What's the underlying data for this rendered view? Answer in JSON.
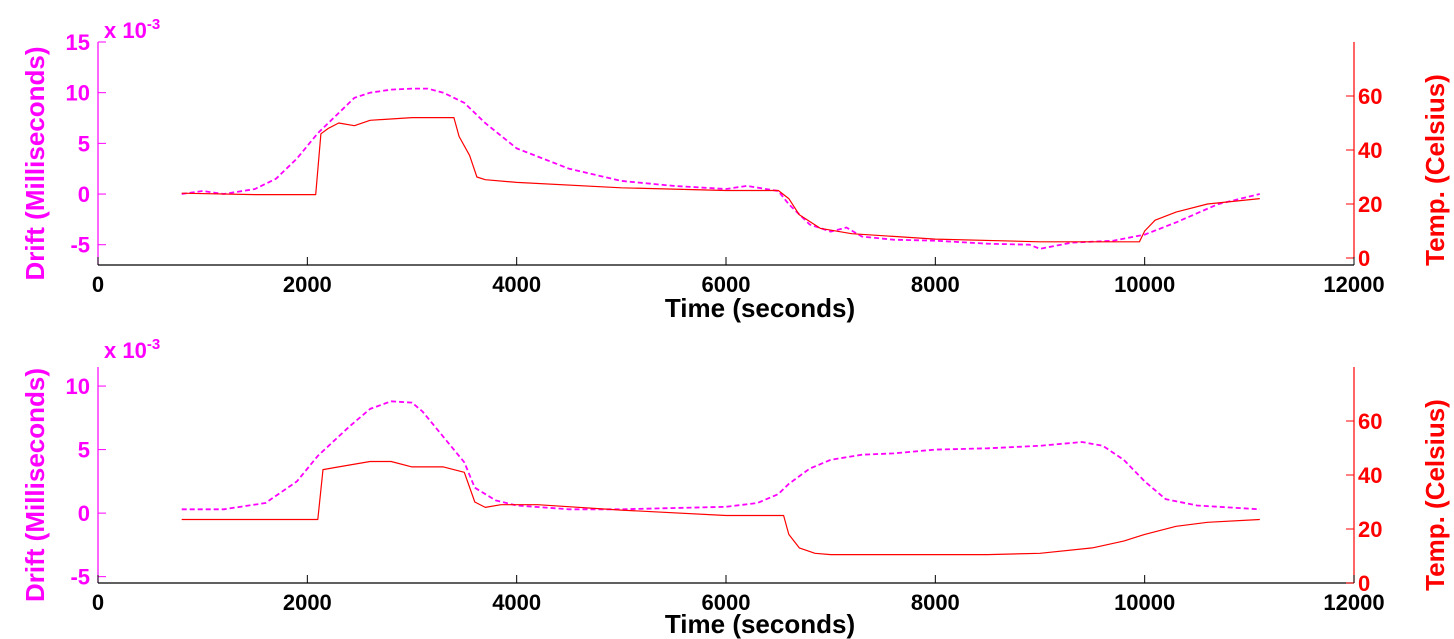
{
  "chart_data": [
    {
      "type": "line",
      "xlabel": "Time (seconds)",
      "ylabel": "Drift (Milliseconds)",
      "ylabel_right": "Temp. (Celsius)",
      "y_scale_prefix": "x 10",
      "y_scale_exponent": "-3",
      "xlim": [
        0,
        12000
      ],
      "xticks": [
        0,
        2000,
        4000,
        6000,
        8000,
        10000,
        12000
      ],
      "ylim": [
        -7,
        15
      ],
      "yticks": [
        -5,
        0,
        5,
        10,
        15
      ],
      "ylim_right": [
        0,
        80
      ],
      "yticks_right": [
        0,
        20,
        40,
        60
      ],
      "grid": false,
      "colors": {
        "drift": "#ff00ff",
        "temp": "#ff0000"
      },
      "series": [
        {
          "axis": "left",
          "style": "dashed",
          "x": [
            800,
            1000,
            1200,
            1500,
            1700,
            1900,
            2100,
            2300,
            2450,
            2600,
            2800,
            3000,
            3150,
            3300,
            3500,
            3700,
            4000,
            4500,
            5000,
            5500,
            6000,
            6200,
            6500,
            6600,
            6800,
            7000,
            7150,
            7300,
            7600,
            8000,
            8500,
            8900,
            9000,
            9300,
            9700,
            10000,
            10300,
            10700,
            11100
          ],
          "values": [
            0,
            0.3,
            0,
            0.5,
            1.5,
            3.5,
            6.0,
            8.0,
            9.5,
            10.0,
            10.3,
            10.4,
            10.4,
            10.0,
            9.0,
            7.0,
            4.5,
            2.5,
            1.3,
            0.8,
            0.5,
            0.8,
            0.3,
            -1.0,
            -3.0,
            -3.7,
            -3.3,
            -4.2,
            -4.5,
            -4.6,
            -4.9,
            -5.0,
            -5.4,
            -4.8,
            -4.6,
            -4.0,
            -2.8,
            -1.0,
            0
          ],
          "label_refs": {}
        },
        {
          "axis": "right",
          "style": "solid",
          "x": [
            800,
            1500,
            2080,
            2130,
            2200,
            2300,
            2450,
            2600,
            3000,
            3400,
            3450,
            3550,
            3620,
            3700,
            4000,
            5000,
            6000,
            6500,
            6600,
            6700,
            6900,
            7200,
            7600,
            8000,
            9000,
            9800,
            9950,
            10000,
            10100,
            10300,
            10600,
            11100
          ],
          "values": [
            24,
            23.5,
            23.5,
            46,
            48,
            50,
            49,
            51,
            52,
            52,
            45,
            38,
            30,
            29,
            28,
            26,
            25,
            25,
            22,
            16,
            11,
            9,
            8,
            7,
            6,
            6,
            6,
            10,
            14,
            17,
            20,
            22
          ]
        }
      ]
    },
    {
      "type": "line",
      "xlabel": "Time (seconds)",
      "ylabel": "Drift (Milliseconds)",
      "ylabel_right": "Temp. (Celsius)",
      "y_scale_prefix": "x 10",
      "y_scale_exponent": "-3",
      "xlim": [
        0,
        12000
      ],
      "xticks": [
        0,
        2000,
        4000,
        6000,
        8000,
        10000,
        12000
      ],
      "ylim": [
        -5.5,
        11.5
      ],
      "yticks": [
        -5,
        0,
        5,
        10
      ],
      "ylim_right": [
        0,
        80
      ],
      "yticks_right": [
        0,
        20,
        40,
        60
      ],
      "grid": false,
      "colors": {
        "drift": "#ff00ff",
        "temp": "#ff0000"
      },
      "series": [
        {
          "axis": "left",
          "style": "dashed",
          "x": [
            800,
            1200,
            1600,
            1900,
            2100,
            2400,
            2600,
            2800,
            3000,
            3100,
            3300,
            3500,
            3600,
            3800,
            4000,
            4500,
            5000,
            6000,
            6300,
            6500,
            6600,
            6800,
            7000,
            7300,
            7600,
            8000,
            8500,
            9000,
            9400,
            9600,
            9800,
            10000,
            10200,
            10500,
            11100
          ],
          "values": [
            0.3,
            0.3,
            0.8,
            2.5,
            4.5,
            6.8,
            8.2,
            8.8,
            8.7,
            8.0,
            6.0,
            4.0,
            2.0,
            1.0,
            0.6,
            0.3,
            0.3,
            0.5,
            0.8,
            1.5,
            2.3,
            3.5,
            4.2,
            4.6,
            4.7,
            5.0,
            5.1,
            5.3,
            5.6,
            5.3,
            4.2,
            2.5,
            1.1,
            0.6,
            0.3
          ]
        },
        {
          "axis": "right",
          "style": "solid",
          "x": [
            800,
            1500,
            2100,
            2150,
            2300,
            2600,
            2800,
            3000,
            3300,
            3500,
            3600,
            3700,
            3850,
            4200,
            5000,
            6000,
            6550,
            6600,
            6700,
            6850,
            7000,
            7300,
            7600,
            8000,
            8500,
            9000,
            9500,
            9800,
            10000,
            10300,
            10600,
            11100
          ],
          "values": [
            23.5,
            23.5,
            23.5,
            42,
            43,
            45,
            45,
            43,
            43,
            41,
            30,
            28,
            29,
            29,
            27,
            25,
            25,
            18,
            13,
            11,
            10.5,
            10.5,
            10.5,
            10.5,
            10.5,
            11,
            13,
            15.5,
            18,
            21,
            22.5,
            23.5
          ]
        }
      ]
    }
  ]
}
